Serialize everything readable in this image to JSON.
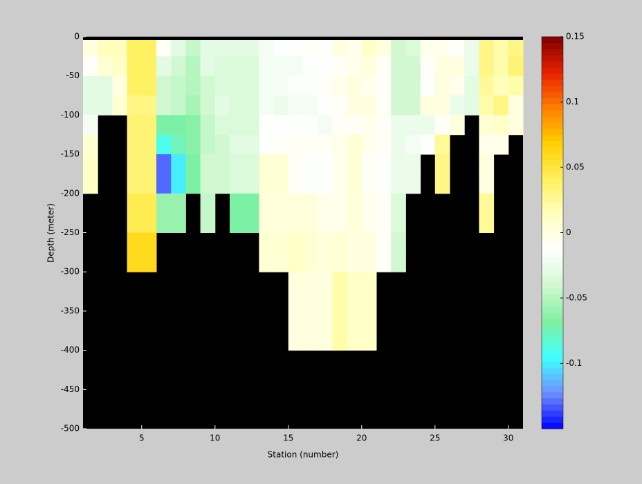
{
  "chart_data": {
    "type": "heatmap",
    "xlabel": "Station (number)",
    "ylabel": "Depth (meter)",
    "xlim": [
      1,
      31
    ],
    "ylim": [
      -500,
      0
    ],
    "xticks": [
      5,
      10,
      15,
      20,
      25,
      30
    ],
    "yticks": [
      0,
      -50,
      -100,
      -150,
      -200,
      -250,
      -300,
      -350,
      -400,
      -450,
      -500
    ],
    "x": [
      1,
      2,
      3,
      4,
      5,
      6,
      7,
      8,
      9,
      10,
      11,
      12,
      13,
      14,
      15,
      16,
      17,
      18,
      19,
      20,
      21,
      22,
      23,
      24,
      25,
      26,
      27,
      28,
      29,
      30
    ],
    "y": [
      0,
      -25,
      -50,
      -75,
      -100,
      -125,
      -150,
      -175,
      -200,
      -225,
      -250,
      -275,
      -300,
      -325,
      -350,
      -375
    ],
    "z": [
      [
        0,
        -0.01,
        -0.03,
        -0.03,
        -0.02,
        0.005,
        0.01,
        0.01,
        null,
        null,
        null,
        null,
        null,
        null,
        null,
        null
      ],
      [
        0.015,
        0.005,
        -0.03,
        -0.03,
        null,
        null,
        null,
        null,
        null,
        null,
        null,
        null,
        null,
        null,
        null,
        null
      ],
      [
        0.015,
        0.01,
        0,
        0.005,
        null,
        null,
        null,
        null,
        null,
        null,
        null,
        null,
        null,
        null,
        null,
        null
      ],
      [
        0.04,
        0.04,
        0.04,
        0.03,
        0.035,
        0.035,
        0.035,
        0.035,
        0.045,
        0.045,
        0.06,
        0.06,
        null,
        null,
        null,
        null
      ],
      [
        0.04,
        0.04,
        0.04,
        0.03,
        0.035,
        0.035,
        0.035,
        0.035,
        0.045,
        0.045,
        0.06,
        0.06,
        null,
        null,
        null,
        null
      ],
      [
        -0.01,
        -0.03,
        -0.04,
        -0.04,
        -0.07,
        -0.09,
        -0.13,
        -0.13,
        -0.06,
        -0.06,
        null,
        null,
        null,
        null,
        null,
        null
      ],
      [
        -0.03,
        -0.04,
        -0.045,
        -0.045,
        -0.07,
        -0.075,
        -0.1,
        -0.1,
        -0.06,
        -0.06,
        null,
        null,
        null,
        null,
        null,
        null
      ],
      [
        -0.045,
        -0.05,
        -0.05,
        -0.055,
        -0.065,
        -0.065,
        -0.07,
        -0.07,
        null,
        null,
        null,
        null,
        null,
        null,
        null,
        null
      ],
      [
        -0.03,
        -0.03,
        -0.04,
        -0.04,
        -0.045,
        -0.045,
        -0.04,
        -0.04,
        -0.045,
        -0.045,
        null,
        null,
        null,
        null,
        null,
        null
      ],
      [
        -0.03,
        -0.035,
        -0.035,
        -0.03,
        -0.035,
        -0.04,
        -0.04,
        -0.04,
        null,
        null,
        null,
        null,
        null,
        null,
        null,
        null
      ],
      [
        -0.03,
        -0.035,
        -0.035,
        -0.035,
        -0.035,
        -0.03,
        -0.035,
        -0.035,
        -0.07,
        -0.07,
        null,
        null,
        null,
        null,
        null,
        null
      ],
      [
        -0.03,
        -0.035,
        -0.035,
        -0.035,
        -0.035,
        -0.03,
        -0.035,
        -0.035,
        -0.07,
        -0.07,
        null,
        null,
        null,
        null,
        null,
        null
      ],
      [
        -0.02,
        -0.02,
        -0.02,
        -0.02,
        -0.015,
        -0.015,
        0.005,
        0.005,
        0.002,
        0.002,
        0.005,
        0.005,
        null,
        null,
        null,
        null
      ],
      [
        -0.015,
        -0.02,
        -0.02,
        -0.025,
        -0.015,
        -0.01,
        0.005,
        0.005,
        0.002,
        0.002,
        0.005,
        0.005,
        null,
        null,
        null,
        null
      ],
      [
        -0.015,
        -0.02,
        -0.015,
        -0.02,
        -0.015,
        -0.01,
        -0.01,
        -0.01,
        0.002,
        0.002,
        0.01,
        0.01,
        0,
        0,
        0,
        0
      ],
      [
        -0.01,
        -0.015,
        -0.015,
        -0.02,
        -0.015,
        -0.01,
        -0.015,
        -0.015,
        0.002,
        0.002,
        0.005,
        0.005,
        0,
        0,
        0,
        0
      ],
      [
        -0.015,
        -0.015,
        -0.01,
        -0.015,
        -0.02,
        -0.01,
        -0.015,
        -0.015,
        -0.005,
        -0.005,
        0.002,
        0.002,
        0,
        0,
        0,
        0
      ],
      [
        0,
        -0.01,
        -0.005,
        -0.01,
        -0.01,
        -0.005,
        -0.005,
        -0.005,
        -0.005,
        -0.005,
        0.005,
        0.005,
        0.02,
        0.02,
        0.02,
        0.02
      ],
      [
        -0.005,
        -0.005,
        0,
        0,
        -0.01,
        0.005,
        0.005,
        0.005,
        0.002,
        0.002,
        0,
        0,
        0.01,
        0.01,
        0.01,
        0.01
      ],
      [
        0.01,
        0,
        -0.005,
        0,
        -0.005,
        -0.005,
        -0.01,
        -0.01,
        -0.005,
        -0.005,
        0,
        0,
        0.01,
        0.01,
        0.01,
        0.01
      ],
      [
        0,
        -0.01,
        -0.01,
        -0.01,
        -0.01,
        -0.01,
        -0.015,
        -0.015,
        -0.01,
        -0.01,
        -0.01,
        -0.01,
        null,
        null,
        null,
        null
      ],
      [
        -0.04,
        -0.04,
        -0.04,
        -0.04,
        -0.025,
        -0.025,
        -0.025,
        -0.025,
        -0.035,
        -0.035,
        -0.04,
        -0.04,
        null,
        null,
        null,
        null
      ],
      [
        -0.035,
        -0.04,
        -0.04,
        -0.04,
        -0.025,
        -0.02,
        -0.025,
        -0.025,
        null,
        null,
        null,
        null,
        null,
        null,
        null,
        null
      ],
      [
        -0.005,
        -0.01,
        -0.015,
        0,
        -0.025,
        -0.015,
        null,
        null,
        null,
        null,
        null,
        null,
        null,
        null,
        null,
        null
      ],
      [
        -0.005,
        0,
        0,
        0,
        -0.01,
        0.025,
        0.03,
        0.03,
        null,
        null,
        null,
        null,
        null,
        null,
        null,
        null
      ],
      [
        -0.015,
        0,
        -0.005,
        -0.025,
        0,
        null,
        null,
        null,
        null,
        null,
        null,
        null,
        null,
        null,
        null,
        null
      ],
      [
        -0.025,
        -0.025,
        -0.03,
        -0.03,
        null,
        null,
        null,
        null,
        null,
        null,
        null,
        null,
        null,
        null,
        null,
        null
      ],
      [
        0.03,
        0.03,
        0.025,
        0.02,
        0.005,
        -0.005,
        0,
        0,
        0.025,
        0.025,
        null,
        null,
        null,
        null,
        null,
        null
      ],
      [
        0.02,
        0.02,
        0.015,
        0.03,
        0.01,
        -0.005,
        null,
        null,
        null,
        null,
        null,
        null,
        null,
        null,
        null,
        null
      ],
      [
        0.03,
        0.035,
        0.02,
        0,
        0,
        null,
        null,
        null,
        null,
        null,
        null,
        null,
        null,
        null,
        null,
        null
      ]
    ],
    "clim": [
      -0.15,
      0.15
    ],
    "cticks": [
      0.15,
      0.1,
      0.05,
      0,
      -0.05,
      -0.1
    ],
    "colormap": [
      "#0000ff",
      "#6f8fff",
      "#40ffff",
      "#80f0a0",
      "#d0f8d0",
      "#ffffff",
      "#ffffc0",
      "#fff060",
      "#ffd000",
      "#ff8000",
      "#e82000",
      "#800000"
    ],
    "nodata_color": "#000000"
  }
}
